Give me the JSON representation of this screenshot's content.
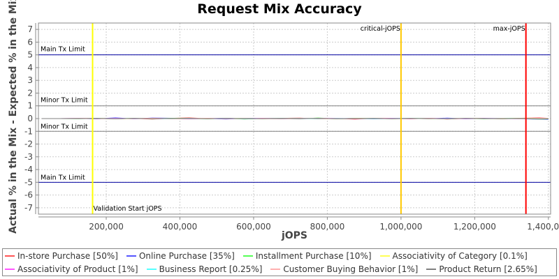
{
  "chart_data": {
    "type": "line",
    "title": "Request Mix Accuracy",
    "xlabel": "jOPS",
    "ylabel": "Actual % in the Mix - Expected % in the Mix",
    "xlim": [
      16000,
      1406000
    ],
    "ylim": [
      -7.5,
      7.5
    ],
    "x_ticks": [
      200000,
      400000,
      600000,
      800000,
      1000000,
      1200000,
      1400000
    ],
    "x_tick_labels": [
      "200,000",
      "400,000",
      "600,000",
      "800,000",
      "1,000,000",
      "1,200,000",
      "1,400,000"
    ],
    "y_ticks": [
      7,
      6,
      5,
      4,
      3,
      2,
      1,
      0,
      -1,
      -2,
      -3,
      -4,
      -5,
      -6,
      -7
    ],
    "y_tick_labels": [
      "7",
      "6",
      "5",
      "4",
      "3",
      "2",
      "1",
      "0",
      "-1",
      "-2",
      "-3",
      "-4",
      "-5",
      "-6",
      "-7"
    ],
    "grid": true,
    "legend_placement": "bottom",
    "limit_lines": [
      {
        "label": "Main Tx Limit",
        "y": 5,
        "color": "#0000a0"
      },
      {
        "label": "Minor Tx Limit",
        "y": 1,
        "color": "#808080"
      },
      {
        "label": "Minor Tx Limit",
        "y": -1,
        "color": "#808080"
      },
      {
        "label": "Main Tx Limit",
        "y": -5,
        "color": "#0000a0"
      }
    ],
    "markers": [
      {
        "label": "Validation Start jOPS",
        "x": 163000,
        "color": "#ffff00"
      },
      {
        "label": "critical-jOPS",
        "x": 1000000,
        "color": "#ffc800"
      },
      {
        "label": "max-jOPS",
        "x": 1339000,
        "color": "#ff0000"
      }
    ],
    "x": [
      25000,
      75000,
      125000,
      175000,
      225000,
      275000,
      325000,
      375000,
      425000,
      475000,
      525000,
      575000,
      625000,
      675000,
      725000,
      775000,
      825000,
      875000,
      925000,
      975000,
      1025000,
      1075000,
      1125000,
      1175000,
      1225000,
      1275000,
      1325000,
      1375000,
      1400000
    ],
    "series": [
      {
        "name": "In-store Purchase [50%]",
        "color": "#ff5555",
        "values": [
          0,
          0,
          0.01,
          0.03,
          -0.02,
          0.01,
          -0.04,
          0.02,
          0.06,
          -0.01,
          0.02,
          -0.03,
          0.01,
          0.02,
          0.04,
          -0.02,
          0.01,
          -0.05,
          0.02,
          0.01,
          -0.02,
          0.03,
          -0.04,
          0.01,
          0.02,
          -0.01,
          0.03,
          0.06,
          0.02
        ]
      },
      {
        "name": "Online Purchase [35%]",
        "color": "#5555ff",
        "values": [
          0,
          0,
          0.01,
          -0.02,
          0.06,
          -0.03,
          0.05,
          0.03,
          -0.02,
          0.01,
          -0.04,
          0.02,
          0.01,
          -0.02,
          0.03,
          0.01,
          -0.01,
          0.02,
          -0.02,
          0.01,
          0.02,
          -0.01,
          0.04,
          -0.02,
          0.01,
          0.03,
          -0.02,
          -0.05,
          -0.06
        ]
      },
      {
        "name": "Installment Purchase [10%]",
        "color": "#55ff55",
        "values": [
          0,
          0,
          -0.01,
          0.02,
          -0.03,
          0.03,
          -0.01,
          0.02,
          0.01,
          -0.02,
          0.03,
          -0.04,
          0.02,
          0.01,
          -0.03,
          0.05,
          -0.02,
          0.01,
          0.02,
          -0.01,
          0.01,
          0.02,
          -0.03,
          0.01,
          -0.02,
          0.02,
          0.01,
          -0.04,
          -0.03
        ]
      },
      {
        "name": "Associativity of Category [0.1%]",
        "color": "#ffff55",
        "values": [
          0,
          0,
          0,
          0.01,
          0,
          -0.01,
          0.01,
          0,
          -0.01,
          0.01,
          0,
          0.01,
          -0.01,
          0,
          0.01,
          0,
          -0.01,
          0.01,
          0,
          0,
          0.01,
          -0.01,
          0,
          0.01,
          0,
          -0.01,
          0.01,
          0.02,
          0
        ]
      },
      {
        "name": "Associativity of Product [1%]",
        "color": "#ff55ff",
        "values": [
          0,
          0,
          0.01,
          -0.01,
          0.02,
          -0.01,
          0.01,
          0,
          -0.02,
          0.01,
          0.01,
          -0.01,
          0.02,
          0,
          -0.01,
          0.01,
          0.02,
          -0.01,
          0,
          0.01,
          -0.01,
          0.02,
          0,
          -0.01,
          0.01,
          0,
          -0.02,
          0.01,
          0
        ]
      },
      {
        "name": "Business Report [0.25%]",
        "color": "#55ffff",
        "values": [
          0,
          0,
          0,
          0.01,
          -0.01,
          0.01,
          0,
          -0.01,
          0.01,
          0,
          0.01,
          -0.01,
          0,
          0.01,
          0,
          -0.01,
          0.01,
          0,
          -0.01,
          0,
          0.01,
          0,
          -0.01,
          0.01,
          0,
          0.01,
          -0.01,
          0,
          0.01
        ]
      },
      {
        "name": "Customer Buying Behavior [1%]",
        "color": "#ffafaf",
        "values": [
          0,
          0,
          0.01,
          0,
          -0.02,
          0.01,
          0.02,
          -0.01,
          0,
          0.02,
          -0.01,
          0.01,
          0,
          -0.02,
          0.01,
          0.01,
          -0.01,
          0,
          0.02,
          -0.01,
          0,
          0.01,
          -0.02,
          0.01,
          0,
          0.01,
          -0.01,
          0.03,
          0.02
        ]
      },
      {
        "name": "Product Return [2.65%]",
        "color": "#808080",
        "values": [
          0,
          0,
          0,
          0.01,
          -0.01,
          0.02,
          -0.01,
          0.01,
          0,
          -0.01,
          0.02,
          0,
          -0.01,
          0.01,
          0,
          0.02,
          -0.01,
          0,
          0.01,
          -0.01,
          0.01,
          0,
          -0.01,
          0.02,
          0,
          -0.01,
          0.01,
          -0.02,
          -0.01
        ]
      }
    ]
  }
}
